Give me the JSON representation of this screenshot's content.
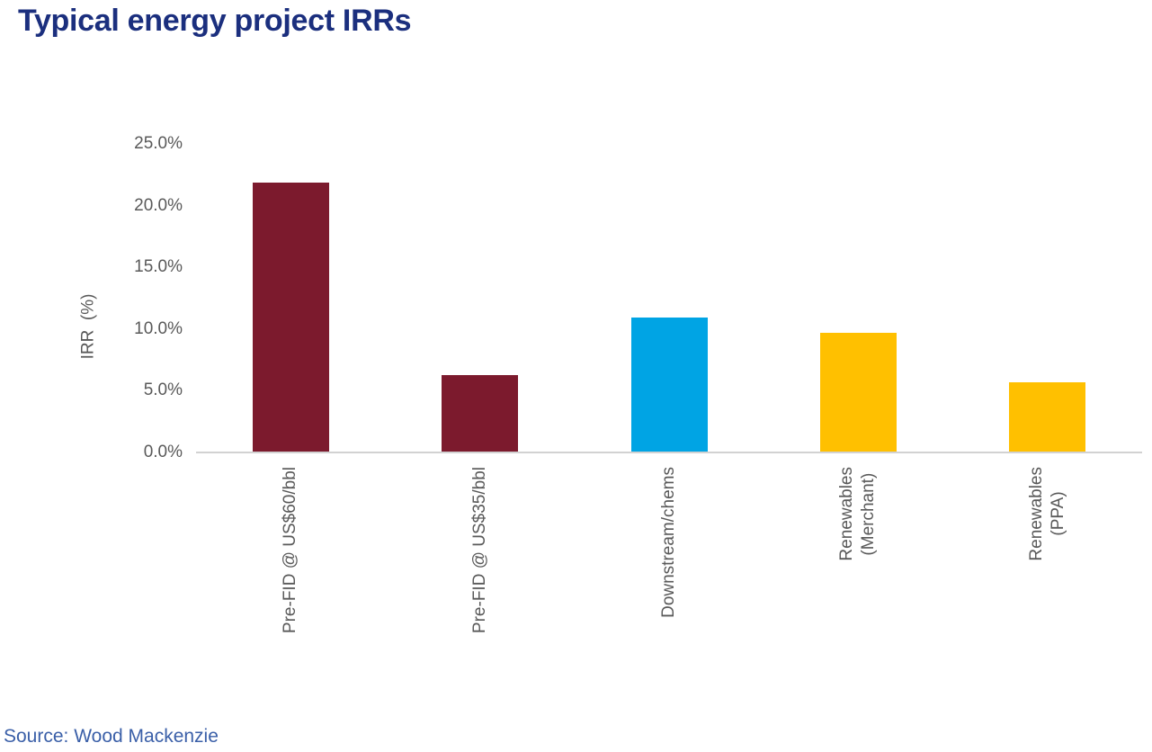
{
  "source_note": "Source: Wood Mackenzie",
  "chart_data": {
    "type": "bar",
    "title": "Typical energy project IRRs",
    "categories": [
      "Pre-FID @ US$60/bbl",
      "Pre-FID @ US$35/bbl",
      "Downstream/chems",
      "Renewables\n(Merchant)",
      "Renewables\n(PPA)"
    ],
    "values": [
      21.9,
      6.3,
      10.9,
      9.7,
      5.7
    ],
    "colors": [
      "#7C1A2D",
      "#7C1A2D",
      "#00A4E4",
      "#FFC000",
      "#FFC000"
    ],
    "xlabel": "",
    "ylabel": "IRR  (%)",
    "ylim": [
      0,
      25
    ],
    "ytick_values": [
      0,
      5,
      10,
      15,
      20,
      25
    ],
    "ytick_labels": [
      "0.0%",
      "5.0%",
      "10.0%",
      "15.0%",
      "20.0%",
      "25.0%"
    ],
    "grid": false,
    "legend": "none",
    "category_label_rotation": 90
  }
}
